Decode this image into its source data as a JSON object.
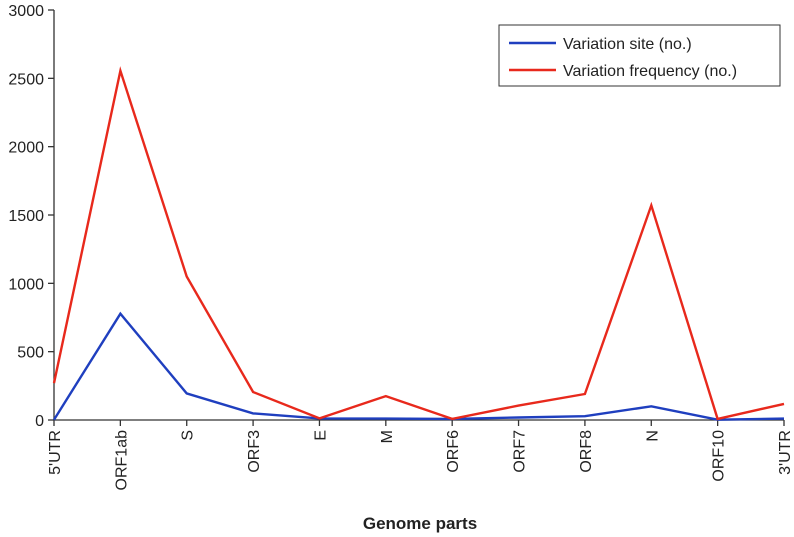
{
  "chart_data": {
    "type": "line",
    "title": "",
    "xlabel": "Genome parts",
    "ylabel": "",
    "ylim": [
      0,
      3000
    ],
    "yticks": [
      0,
      500,
      1000,
      1500,
      2000,
      2500,
      3000
    ],
    "categories": [
      "5'UTR",
      "ORF1ab",
      "S",
      "ORF3",
      "E",
      "M",
      "ORF6",
      "ORF7",
      "ORF8",
      "N",
      "ORF10",
      "3'UTR"
    ],
    "series": [
      {
        "name": "Variation site (no.)",
        "color": "#1f3fbf",
        "values": [
          2,
          778,
          195,
          48,
          12,
          10,
          8,
          18,
          28,
          100,
          2,
          10
        ]
      },
      {
        "name": "Variation frequency (no.)",
        "color": "#e8291c",
        "values": [
          270,
          2555,
          1050,
          205,
          12,
          175,
          8,
          105,
          190,
          1570,
          8,
          118
        ]
      }
    ],
    "legend_position": "top-right",
    "grid": false
  }
}
